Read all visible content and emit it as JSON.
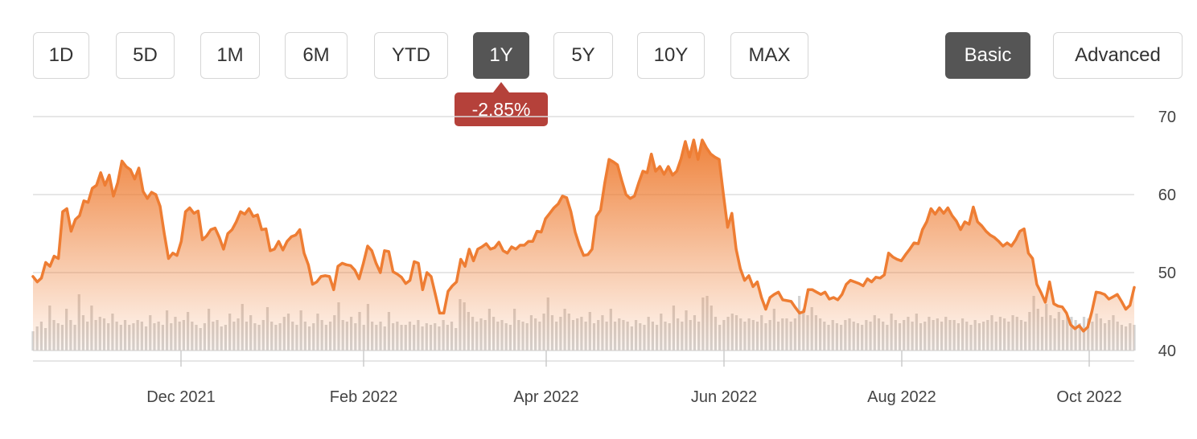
{
  "range_buttons": [
    {
      "label": "1D"
    },
    {
      "label": "5D"
    },
    {
      "label": "1M"
    },
    {
      "label": "6M"
    },
    {
      "label": "YTD"
    },
    {
      "label": "1Y"
    },
    {
      "label": "5Y"
    },
    {
      "label": "10Y"
    },
    {
      "label": "MAX"
    }
  ],
  "selected_range": "1Y",
  "mode_buttons": [
    {
      "label": "Basic"
    },
    {
      "label": "Advanced"
    }
  ],
  "selected_mode": "Basic",
  "change_badge": {
    "text": "-2.85%",
    "color": "#b5413a"
  },
  "colors": {
    "line": "#ee7d33",
    "area_top": "#ee7d33",
    "volume": "#d3d3d3",
    "grid": "#dddddd"
  },
  "chart_data": {
    "type": "area",
    "title": "",
    "xlabel": "",
    "ylabel": "",
    "ylim": [
      40,
      70
    ],
    "y_ticks": [
      40,
      50,
      60,
      70
    ],
    "x_ticks": [
      "Dec 2021",
      "Feb 2022",
      "Apr 2022",
      "Jun 2022",
      "Aug 2022",
      "Oct 2022"
    ],
    "grid": true,
    "series": [
      {
        "values": [
          49.5,
          48.8,
          49.3,
          51.3,
          50.8,
          52.1,
          51.8,
          57.8,
          58.2,
          55.3,
          56.8,
          57.3,
          59.2,
          59.0,
          60.8,
          61.2,
          62.8,
          61.2,
          62.5,
          59.8,
          61.5,
          64.3,
          63.6,
          63.2,
          62.0,
          63.4,
          60.4,
          59.5,
          60.3,
          60.0,
          58.5,
          55.0,
          51.8,
          52.5,
          52.2,
          54.0,
          57.8,
          58.3,
          57.6,
          57.9,
          54.2,
          54.7,
          55.5,
          55.7,
          54.5,
          53.0,
          55.0,
          55.5,
          56.5,
          57.8,
          57.5,
          58.2,
          57.2,
          57.4,
          55.5,
          55.6,
          52.8,
          53.0,
          54.0,
          52.9,
          54.0,
          54.6,
          54.8,
          55.5,
          52.5,
          51.0,
          48.5,
          48.8,
          49.5,
          49.6,
          49.5,
          47.8,
          50.8,
          51.2,
          51.0,
          50.9,
          50.3,
          49.2,
          51.2,
          53.4,
          52.8,
          51.2,
          50.0,
          52.8,
          52.7,
          50.1,
          49.8,
          49.4,
          48.6,
          49.0,
          51.4,
          51.2,
          47.8,
          50.0,
          49.5,
          47.2,
          44.8,
          44.8,
          47.6,
          48.3,
          48.8,
          51.7,
          50.8,
          53.0,
          51.5,
          53.0,
          53.3,
          53.7,
          53.0,
          53.2,
          53.9,
          52.8,
          52.5,
          53.3,
          53.0,
          53.5,
          53.5,
          54.0,
          54.0,
          55.3,
          55.2,
          56.9,
          57.6,
          58.3,
          58.8,
          59.8,
          59.6,
          57.8,
          55.2,
          53.5,
          52.2,
          52.3,
          53.0,
          57.2,
          58.0,
          61.5,
          64.5,
          64.2,
          63.8,
          61.8,
          60.0,
          59.5,
          59.8,
          61.5,
          63.0,
          62.8,
          65.2,
          63.0,
          63.6,
          62.6,
          63.6,
          62.5,
          63.0,
          64.6,
          66.8,
          64.8,
          67.0,
          64.5,
          67.0,
          66.0,
          65.2,
          64.8,
          64.5,
          60.0,
          55.8,
          57.6,
          53.0,
          50.5,
          49.0,
          49.6,
          48.2,
          48.8,
          46.8,
          45.3,
          46.8,
          47.2,
          47.5,
          46.5,
          46.4,
          46.3,
          45.5,
          44.8,
          45.0,
          47.8,
          47.8,
          47.5,
          47.2,
          47.5,
          46.6,
          46.8,
          46.5,
          47.2,
          48.5,
          49.0,
          48.8,
          48.6,
          48.3,
          49.2,
          48.8,
          49.4,
          49.3,
          49.7,
          52.5,
          52.0,
          51.7,
          51.5,
          52.3,
          53.0,
          53.8,
          53.7,
          55.5,
          56.5,
          58.2,
          57.5,
          58.3,
          57.6,
          58.3,
          57.3,
          56.6,
          55.5,
          56.5,
          56.2,
          58.4,
          56.5,
          56.0,
          55.3,
          54.8,
          54.5,
          54.0,
          53.4,
          53.8,
          53.4,
          54.2,
          55.3,
          55.6,
          52.5,
          51.8,
          48.5,
          47.4,
          46.2,
          48.8,
          46.0,
          45.7,
          45.6,
          44.8,
          43.3,
          42.8,
          43.2,
          42.5,
          43.0,
          45.0,
          47.5,
          47.4,
          47.2,
          46.6,
          46.9,
          47.2,
          46.3,
          45.3,
          45.8,
          48.1
        ]
      }
    ],
    "volume": [
      1.2,
      1.5,
      1.8,
      1.4,
      2.8,
      1.9,
      1.7,
      1.6,
      2.6,
      1.9,
      1.6,
      3.5,
      2.2,
      1.8,
      2.8,
      1.9,
      2.1,
      2.0,
      1.7,
      2.3,
      1.8,
      1.6,
      1.9,
      1.6,
      1.7,
      1.9,
      1.8,
      1.5,
      2.2,
      1.7,
      1.8,
      1.6,
      2.5,
      1.7,
      2.1,
      1.8,
      1.9,
      2.4,
      1.8,
      1.6,
      1.4,
      1.7,
      2.6,
      1.8,
      1.9,
      1.5,
      1.6,
      2.3,
      1.8,
      2.0,
      2.9,
      1.8,
      2.2,
      1.7,
      1.6,
      1.9,
      2.7,
      1.8,
      1.6,
      1.7,
      2.1,
      2.3,
      1.8,
      1.6,
      2.5,
      1.8,
      1.5,
      1.7,
      2.3,
      1.9,
      1.6,
      1.8,
      2.2,
      3.0,
      1.9,
      1.8,
      2.1,
      1.7,
      2.4,
      1.6,
      2.9,
      1.8,
      1.6,
      1.8,
      1.5,
      2.4,
      1.7,
      1.8,
      1.6,
      1.6,
      1.8,
      1.6,
      1.9,
      1.5,
      1.7,
      1.6,
      1.7,
      1.5,
      1.9,
      1.6,
      1.8,
      1.4,
      3.2,
      3.0,
      2.4,
      2.1,
      1.8,
      2.0,
      1.9,
      2.6,
      2.1,
      1.8,
      1.9,
      1.7,
      1.6,
      2.6,
      1.9,
      1.8,
      1.7,
      2.2,
      2.0,
      1.8,
      2.3,
      3.3,
      2.2,
      1.8,
      2.1,
      2.6,
      2.3,
      1.9,
      2.0,
      2.1,
      1.8,
      2.4,
      1.7,
      1.9,
      2.2,
      1.8,
      2.6,
      1.8,
      2.0,
      1.9,
      1.8,
      1.5,
      1.9,
      1.7,
      1.6,
      2.1,
      1.8,
      1.6,
      2.3,
      1.8,
      1.7,
      2.8,
      2.0,
      1.8,
      2.5,
      1.9,
      2.2,
      1.8,
      3.3,
      3.4,
      2.8,
      2.1,
      1.6,
      1.9,
      2.1,
      2.3,
      2.2,
      2.0,
      1.8,
      2.0,
      1.9,
      1.8,
      2.2,
      1.7,
      1.9,
      2.6,
      1.8,
      2.0,
      2.0,
      1.8,
      2.0,
      3.4,
      2.6,
      2.2,
      2.7,
      2.2,
      2.0,
      1.8,
      1.6,
      1.9,
      1.7,
      1.6,
      1.9,
      2.0,
      1.8,
      1.7,
      1.6,
      1.9,
      1.8,
      2.2,
      2.0,
      1.8,
      1.6,
      2.3,
      1.9,
      1.7,
      1.9,
      2.1,
      1.8,
      2.3,
      1.7,
      1.8,
      2.1,
      1.9,
      2.0,
      1.8,
      2.1,
      1.9,
      1.9,
      1.7,
      2.0,
      1.8,
      1.6,
      1.9,
      1.7,
      1.8,
      1.9,
      2.2,
      1.8,
      2.1,
      2.0,
      1.8,
      2.2,
      2.1,
      1.9,
      1.8,
      2.4,
      3.4,
      2.6,
      2.1,
      2.9,
      2.2,
      2.0,
      2.4,
      1.9,
      2.2,
      2.1,
      1.9,
      1.7,
      2.1,
      2.0,
      1.8,
      2.3,
      2.0,
      1.7,
      1.9,
      2.2,
      1.8,
      1.6,
      1.5,
      1.7,
      1.6
    ]
  }
}
